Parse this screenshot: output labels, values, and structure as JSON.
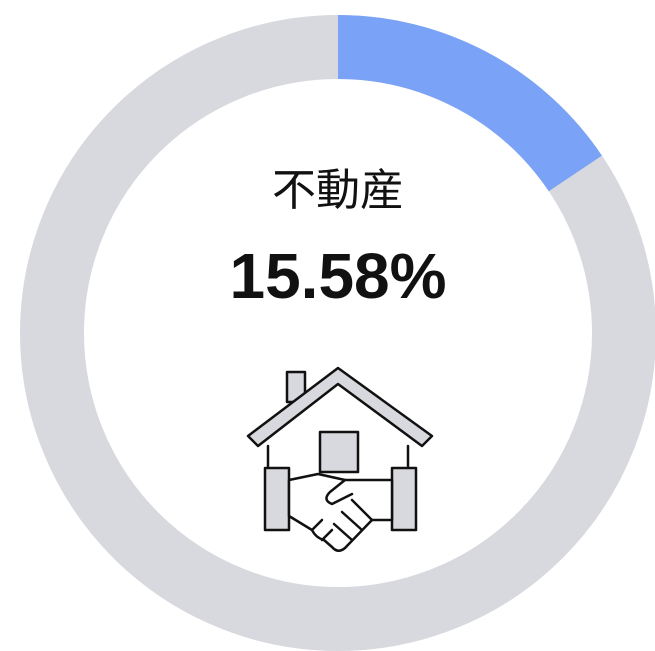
{
  "chart_data": {
    "type": "donut",
    "categories": [
      "不動産"
    ],
    "values": [
      15.58
    ],
    "value_labels": [
      "15.58%"
    ],
    "color": "#7aa3f7",
    "track_color": "#d8d9de"
  }
}
